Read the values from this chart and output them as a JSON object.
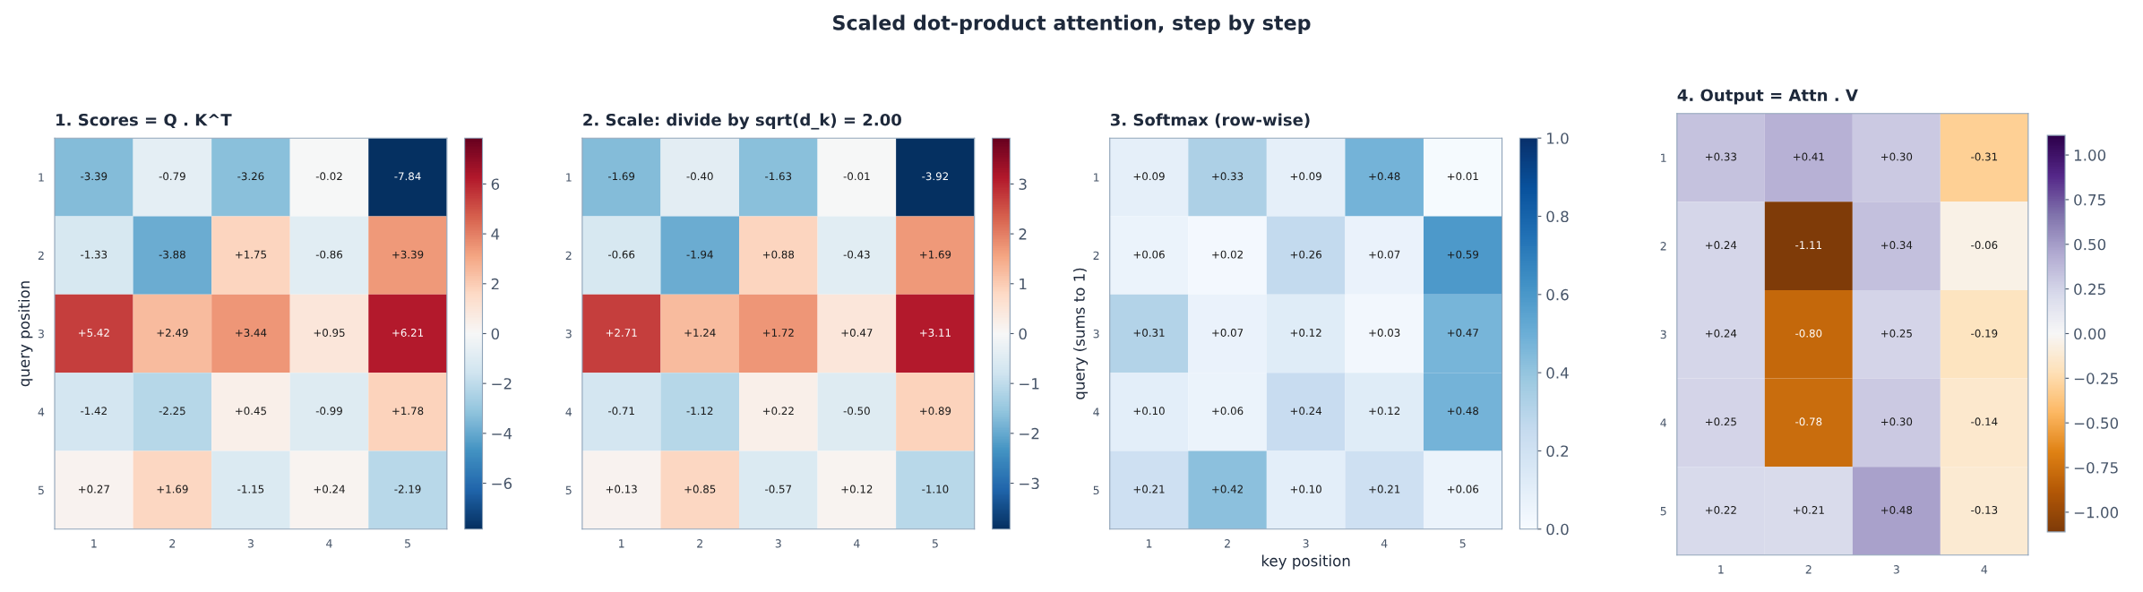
{
  "chart_data": [
    {
      "type": "heatmap",
      "title": "1. Scores = Q . K^T",
      "ylabel": "query position",
      "annotations": [
        "Scaled dot-product attention, step by step"
      ],
      "categories": [
        "1",
        "2",
        "3",
        "4",
        "5"
      ],
      "y_categories": [
        "1",
        "2",
        "3",
        "4",
        "5"
      ],
      "cells": [
        [
          -3.39,
          -0.79,
          -3.26,
          -0.02,
          -7.84
        ],
        [
          -1.33,
          -3.88,
          1.75,
          -0.86,
          3.39
        ],
        [
          5.42,
          2.49,
          3.44,
          0.95,
          6.21
        ],
        [
          -1.42,
          -2.25,
          0.45,
          -0.99,
          1.78
        ],
        [
          0.27,
          1.69,
          -1.15,
          0.24,
          -2.19
        ]
      ],
      "cell_labels": [
        [
          "-3.39",
          "-0.79",
          "-3.26",
          "-0.02",
          "-7.84"
        ],
        [
          "-1.33",
          "-3.88",
          "+1.75",
          "-0.86",
          "+3.39"
        ],
        [
          "+5.42",
          "+2.49",
          "+3.44",
          "+0.95",
          "+6.21"
        ],
        [
          "-1.42",
          "-2.25",
          "+0.45",
          "-0.99",
          "+1.78"
        ],
        [
          "+0.27",
          "+1.69",
          "-1.15",
          "+0.24",
          "-2.19"
        ]
      ],
      "clim": [
        -7.84,
        7.84
      ],
      "cticks": [
        {
          "value": -6,
          "label": "−6"
        },
        {
          "value": -4,
          "label": "−4"
        },
        {
          "value": -2,
          "label": "−2"
        },
        0,
        2,
        4,
        6
      ],
      "colors": [
        "#053061",
        "#2166ac",
        "#4393c3",
        "#92c5de",
        "#d1e5f0",
        "#f7f7f7",
        "#fddbc7",
        "#f4a582",
        "#d6604d",
        "#b2182b",
        "#67001f"
      ]
    },
    {
      "type": "heatmap",
      "title": "2. Scale: divide by sqrt(d_k) = 2.00",
      "categories": [
        "1",
        "2",
        "3",
        "4",
        "5"
      ],
      "y_categories": [
        "1",
        "2",
        "3",
        "4",
        "5"
      ],
      "cells": [
        [
          -1.69,
          -0.4,
          -1.63,
          -0.01,
          -3.92
        ],
        [
          -0.66,
          -1.94,
          0.88,
          -0.43,
          1.69
        ],
        [
          2.71,
          1.24,
          1.72,
          0.47,
          3.11
        ],
        [
          -0.71,
          -1.12,
          0.22,
          -0.5,
          0.89
        ],
        [
          0.13,
          0.85,
          -0.57,
          0.12,
          -1.1
        ]
      ],
      "cell_labels": [
        [
          "-1.69",
          "-0.40",
          "-1.63",
          "-0.01",
          "-3.92"
        ],
        [
          "-0.66",
          "-1.94",
          "+0.88",
          "-0.43",
          "+1.69"
        ],
        [
          "+2.71",
          "+1.24",
          "+1.72",
          "+0.47",
          "+3.11"
        ],
        [
          "-0.71",
          "-1.12",
          "+0.22",
          "-0.50",
          "+0.89"
        ],
        [
          "+0.13",
          "+0.85",
          "-0.57",
          "+0.12",
          "-1.10"
        ]
      ],
      "clim": [
        -3.92,
        3.92
      ],
      "cticks": [
        {
          "value": -3,
          "label": "−3"
        },
        {
          "value": -2,
          "label": "−2"
        },
        {
          "value": -1,
          "label": "−1"
        },
        0,
        1,
        2,
        3
      ],
      "colors": [
        "#053061",
        "#2166ac",
        "#4393c3",
        "#92c5de",
        "#d1e5f0",
        "#f7f7f7",
        "#fddbc7",
        "#f4a582",
        "#d6604d",
        "#b2182b",
        "#67001f"
      ]
    },
    {
      "type": "heatmap",
      "title": "3. Softmax (row-wise)",
      "xlabel": "key position",
      "ylabel": "query (sums to 1)",
      "categories": [
        "1",
        "2",
        "3",
        "4",
        "5"
      ],
      "y_categories": [
        "1",
        "2",
        "3",
        "4",
        "5"
      ],
      "cells": [
        [
          0.09,
          0.33,
          0.09,
          0.48,
          0.01
        ],
        [
          0.06,
          0.02,
          0.26,
          0.07,
          0.59
        ],
        [
          0.31,
          0.07,
          0.12,
          0.03,
          0.47
        ],
        [
          0.1,
          0.06,
          0.24,
          0.12,
          0.48
        ],
        [
          0.21,
          0.42,
          0.1,
          0.21,
          0.06
        ]
      ],
      "cell_labels": [
        [
          "+0.09",
          "+0.33",
          "+0.09",
          "+0.48",
          "+0.01"
        ],
        [
          "+0.06",
          "+0.02",
          "+0.26",
          "+0.07",
          "+0.59"
        ],
        [
          "+0.31",
          "+0.07",
          "+0.12",
          "+0.03",
          "+0.47"
        ],
        [
          "+0.10",
          "+0.06",
          "+0.24",
          "+0.12",
          "+0.48"
        ],
        [
          "+0.21",
          "+0.42",
          "+0.10",
          "+0.21",
          "+0.06"
        ]
      ],
      "clim": [
        0,
        1.0
      ],
      "cticks": [
        {
          "value": 0,
          "label": "0.0"
        },
        {
          "value": 0.2,
          "label": "0.2"
        },
        {
          "value": 0.4,
          "label": "0.4"
        },
        {
          "value": 0.6,
          "label": "0.6"
        },
        {
          "value": 0.8,
          "label": "0.8"
        },
        {
          "value": 1.0,
          "label": "1.0"
        }
      ],
      "colors": [
        "#f7fbff",
        "#deebf7",
        "#c6dbef",
        "#9ecae1",
        "#6baed6",
        "#4292c6",
        "#2171b5",
        "#08519c",
        "#08306b"
      ]
    },
    {
      "type": "heatmap",
      "title": "4. Output = Attn . V",
      "categories": [
        "1",
        "2",
        "3",
        "4"
      ],
      "y_categories": [
        "1",
        "2",
        "3",
        "4",
        "5"
      ],
      "cells": [
        [
          0.33,
          0.41,
          0.3,
          -0.31
        ],
        [
          0.24,
          -1.11,
          0.34,
          -0.06
        ],
        [
          0.24,
          -0.8,
          0.25,
          -0.19
        ],
        [
          0.25,
          -0.78,
          0.3,
          -0.14
        ],
        [
          0.22,
          0.21,
          0.48,
          -0.13
        ]
      ],
      "cell_labels": [
        [
          "+0.33",
          "+0.41",
          "+0.30",
          "-0.31"
        ],
        [
          "+0.24",
          "-1.11",
          "+0.34",
          "-0.06"
        ],
        [
          "+0.24",
          "-0.80",
          "+0.25",
          "-0.19"
        ],
        [
          "+0.25",
          "-0.78",
          "+0.30",
          "-0.14"
        ],
        [
          "+0.22",
          "+0.21",
          "+0.48",
          "-0.13"
        ]
      ],
      "clim": [
        -1.11,
        1.11
      ],
      "cticks": [
        {
          "value": -1,
          "label": "−1.00"
        },
        {
          "value": -0.75,
          "label": "−0.75"
        },
        {
          "value": -0.5,
          "label": "−0.50"
        },
        {
          "value": -0.25,
          "label": "−0.25"
        },
        {
          "value": 0,
          "label": "0.00"
        },
        {
          "value": 0.25,
          "label": "0.25"
        },
        {
          "value": 0.5,
          "label": "0.50"
        },
        {
          "value": 0.75,
          "label": "0.75"
        },
        {
          "value": 1.0,
          "label": "1.00"
        }
      ],
      "colors": [
        "#7f3b08",
        "#b35806",
        "#e08214",
        "#fdb863",
        "#fee0b6",
        "#f7f7f7",
        "#d8daeb",
        "#b2abd2",
        "#8073ac",
        "#542788",
        "#2d004b"
      ]
    }
  ]
}
